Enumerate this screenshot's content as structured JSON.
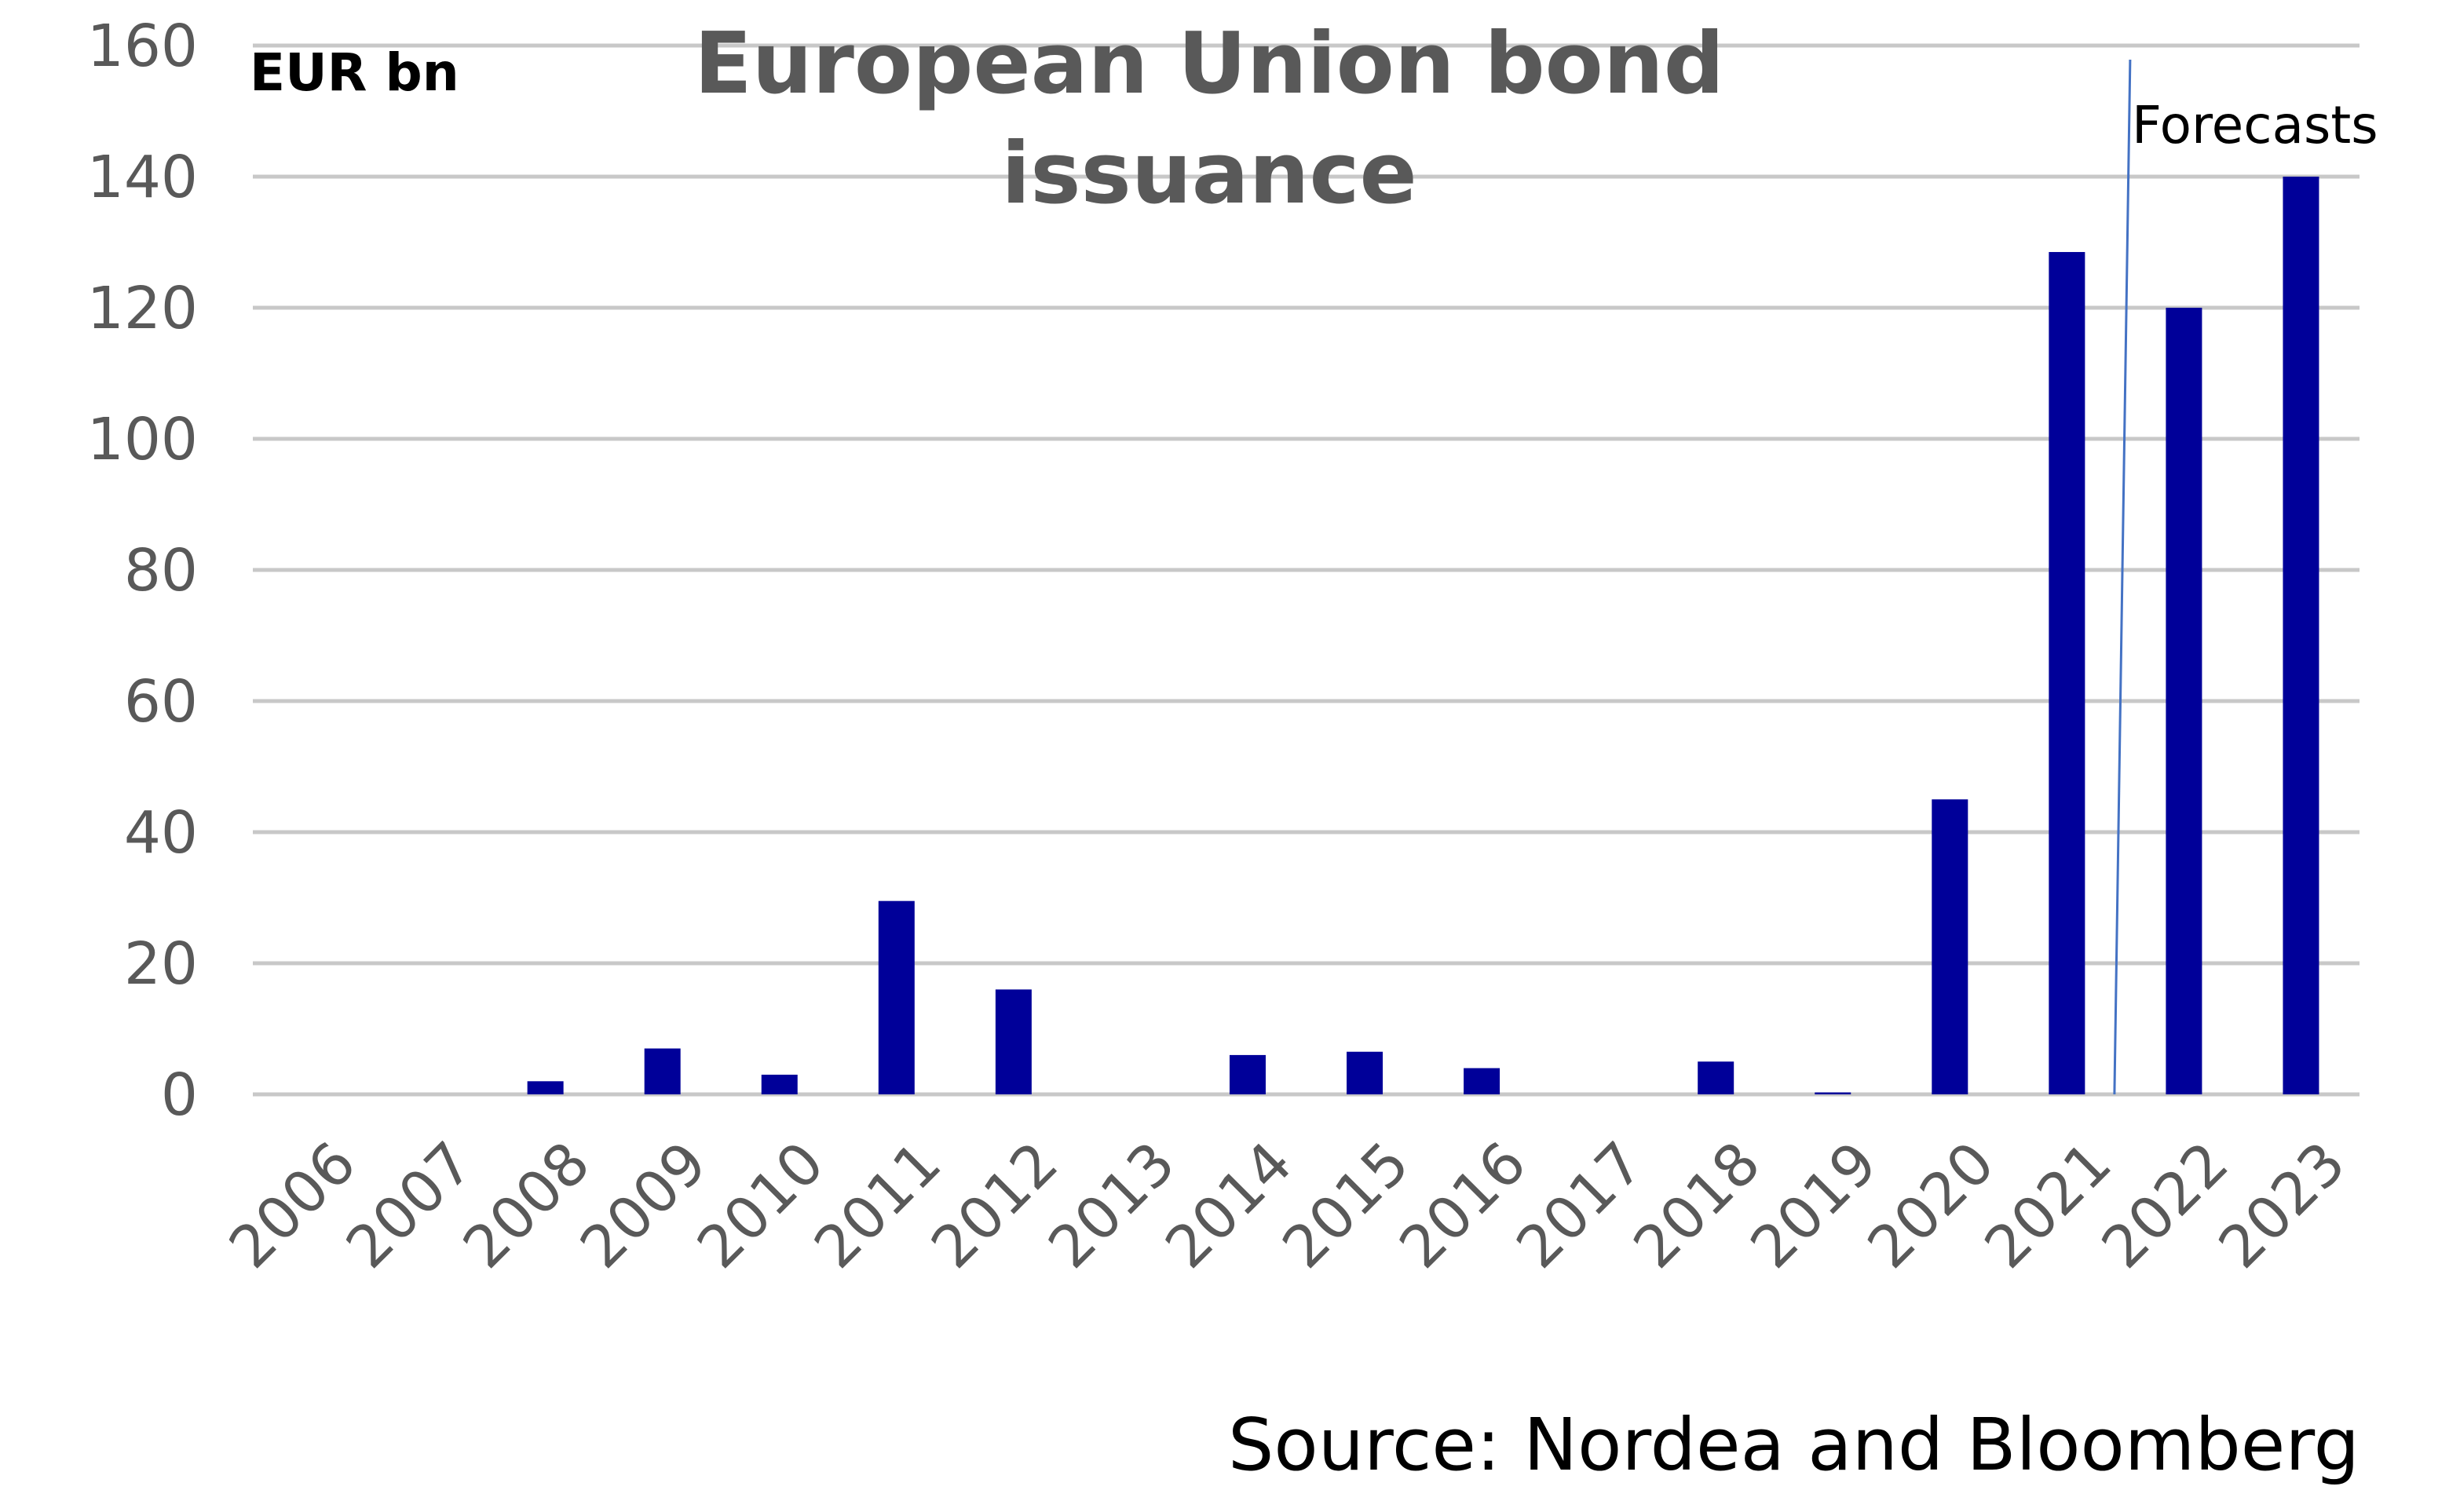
{
  "chart_data": {
    "type": "bar",
    "title_lines": [
      "European Union bond",
      "issuance"
    ],
    "unit_label": "EUR bn",
    "annotation": "Forecasts",
    "source": "Source: Nordea and Bloomberg",
    "categories": [
      "2006",
      "2007",
      "2008",
      "2009",
      "2010",
      "2011",
      "2012",
      "2013",
      "2014",
      "2015",
      "2016",
      "2017",
      "2018",
      "2019",
      "2020",
      "2021",
      "2022",
      "2023"
    ],
    "values": [
      0,
      0,
      2,
      7,
      3,
      29.5,
      16,
      0,
      6,
      6.5,
      4,
      0,
      5,
      0.3,
      45,
      128.5,
      120,
      140
    ],
    "ylim": [
      0,
      160
    ],
    "yticks": [
      0,
      20,
      40,
      60,
      80,
      100,
      120,
      140,
      160
    ],
    "grid": true,
    "forecast_from": "2022",
    "colors": {
      "bar": "#000099",
      "grid": "#c8c8c8",
      "forecast_line": "#4472C4",
      "tick_text": "#595959"
    }
  }
}
